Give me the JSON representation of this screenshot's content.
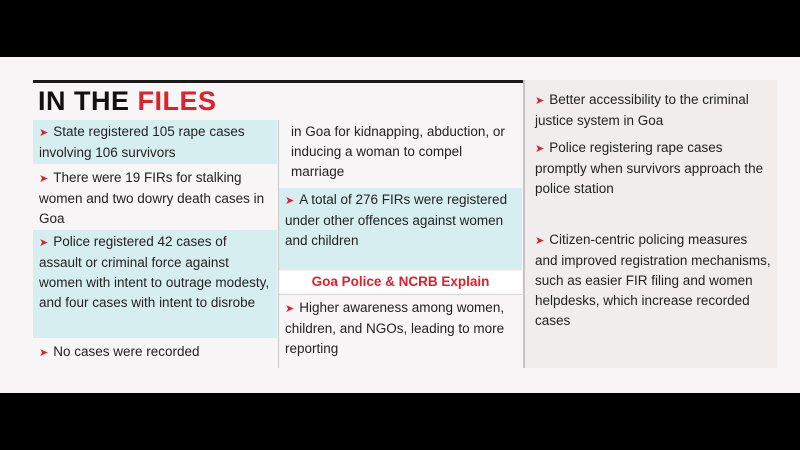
{
  "title": {
    "part1": "IN THE ",
    "part2": "FILES"
  },
  "col1": [
    {
      "text": "State registered 105 rape cases involving 106 survivors"
    },
    {
      "text": "There were 19 FIRs for stalking women and two dowry death cases in Goa"
    },
    {
      "text": "Police registered 42 cases of assault or criminal force against women with intent to outrage modesty, and four cases with intent to disrobe"
    },
    {
      "text": "No cases were recorded"
    }
  ],
  "col2": {
    "continued": "in Goa for kidnapping, abduction, or inducing a woman to compel marriage",
    "item": "A total of 276 FIRs were registered under other offences against women and children",
    "subheading": "Goa Police & NCRB Explain",
    "item2": "Higher awareness among women, children, and NGOs, leading to more reporting"
  },
  "col3": [
    {
      "text": "Better accessibility to the criminal justice system in Goa"
    },
    {
      "text": "Police registering rape cases promptly when survivors approach the police station"
    },
    {
      "text": "Citizen-centric policing measures and improved registration mechanisms, such as easier FIR filing and women helpdesks, which increase recorded cases"
    }
  ],
  "colors": {
    "accent": "#e0202a",
    "highlight": "#d7eef1"
  }
}
